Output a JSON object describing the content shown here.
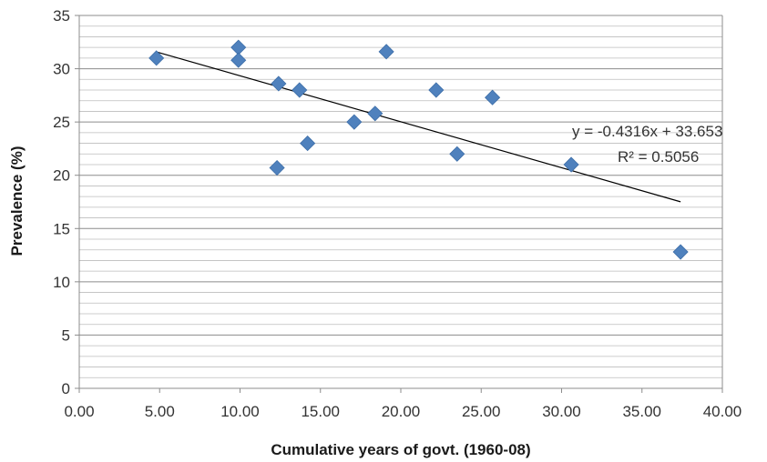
{
  "chart_data": {
    "type": "scatter",
    "xlabel": "Cumulative years of govt. (1960-08)",
    "ylabel": "Prevalence (%)",
    "xlim": [
      0,
      40
    ],
    "ylim": [
      0,
      35
    ],
    "x_ticks": [
      "0.00",
      "5.00",
      "10.00",
      "15.00",
      "20.00",
      "25.00",
      "30.00",
      "35.00",
      "40.00"
    ],
    "y_ticks": [
      "0",
      "5",
      "10",
      "15",
      "20",
      "25",
      "30",
      "35"
    ],
    "grid": "horizontal",
    "marker": "diamond",
    "marker_color": "#4F81BD",
    "series": [
      {
        "points": [
          {
            "x": 4.8,
            "y": 31.0
          },
          {
            "x": 9.9,
            "y": 32.0
          },
          {
            "x": 9.9,
            "y": 30.8
          },
          {
            "x": 12.3,
            "y": 20.7
          },
          {
            "x": 12.4,
            "y": 28.6
          },
          {
            "x": 13.7,
            "y": 28.0
          },
          {
            "x": 14.2,
            "y": 23.0
          },
          {
            "x": 17.1,
            "y": 25.0
          },
          {
            "x": 18.4,
            "y": 25.8
          },
          {
            "x": 19.1,
            "y": 31.6
          },
          {
            "x": 22.2,
            "y": 28.0
          },
          {
            "x": 23.5,
            "y": 22.0
          },
          {
            "x": 25.7,
            "y": 27.3
          },
          {
            "x": 30.6,
            "y": 21.0
          },
          {
            "x": 37.4,
            "y": 12.8
          }
        ]
      }
    ],
    "trendline": {
      "slope": -0.4316,
      "intercept": 33.653,
      "x_start": 4.8,
      "x_end": 37.4
    },
    "annotations": {
      "equation": "y = -0.4316x + 33.653",
      "r_squared": "R² = 0.5056"
    }
  }
}
